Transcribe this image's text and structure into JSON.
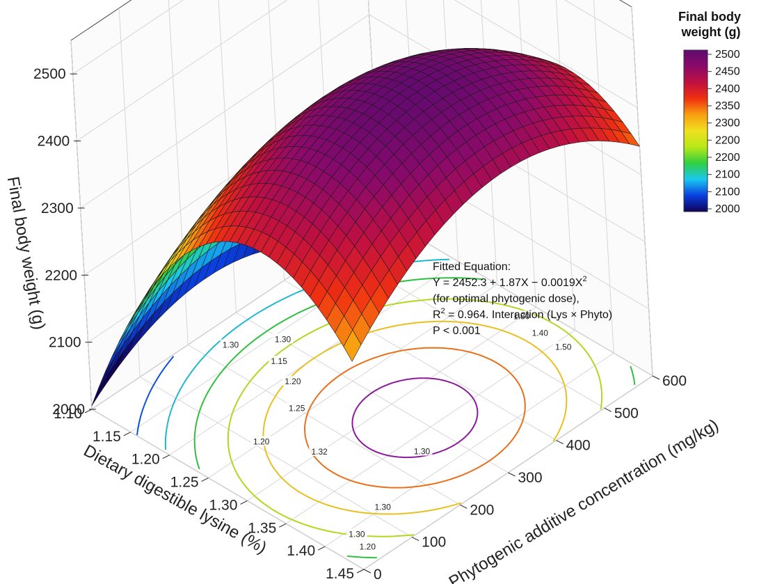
{
  "chart_data": {
    "type": "surface3d",
    "zlabel": "Final body weight (g)",
    "xlabel": "Dietary digestible lysine (%)",
    "ylabel": "Phytogenic additive concentration (mg/kg)",
    "z_ticks": [
      "2000",
      "2100",
      "2200",
      "2300",
      "2400",
      "2500"
    ],
    "x_ticks": [
      "1.10",
      "1.15",
      "1.20",
      "1.25",
      "1.30",
      "1.35",
      "1.40",
      "1.45"
    ],
    "y_ticks": [
      "0",
      "100",
      "200",
      "300",
      "400",
      "500",
      "600"
    ],
    "x_range": [
      1.1,
      1.45
    ],
    "y_range": [
      0,
      600
    ],
    "z_range": [
      2000,
      2550
    ],
    "surface_samples": [
      {
        "lysine": 1.1,
        "phyto": 0,
        "fbw": 2070
      },
      {
        "lysine": 1.1,
        "phyto": 600,
        "fbw": 2200
      },
      {
        "lysine": 1.3,
        "phyto": 0,
        "fbw": 2380
      },
      {
        "lysine": 1.35,
        "phyto": 300,
        "fbw": 2500
      },
      {
        "lysine": 1.45,
        "phyto": 0,
        "fbw": 2430
      },
      {
        "lysine": 1.45,
        "phyto": 600,
        "fbw": 2320
      }
    ],
    "colorbar": {
      "title": "Final body weight (g)",
      "ticks": [
        "2500",
        "2450",
        "2400",
        "2350",
        "2300",
        "2200",
        "2200",
        "2100",
        "2100",
        "2000"
      ]
    },
    "contour_labels": [
      "1.40",
      "1.30",
      "1.30",
      "1.30",
      "1.15",
      "1.20",
      "1.25",
      "1.20",
      "1.32",
      "1.80",
      "1.40",
      "1.50",
      "1.30",
      "1.30",
      "1.30",
      "1.20"
    ],
    "annotation": {
      "line1": "Fitted Equation:",
      "line2_pre": "Y = 2452.3 + 1.87X − 0.0019X",
      "line2_sup": "2",
      "line3": "(for optimal phytogenic dose),",
      "line4_pre": "R",
      "line4_sup": "2",
      "line4_post": " = 0.964. Interaction (Lys × Phyto)",
      "line5": "P < 0.001"
    },
    "colors": {
      "cmap": [
        "#10005a",
        "#0a40e0",
        "#18c8f0",
        "#30d040",
        "#b8e818",
        "#f0e020",
        "#f8a010",
        "#f03010",
        "#c01040",
        "#8a0a6a",
        "#600a70"
      ]
    }
  }
}
